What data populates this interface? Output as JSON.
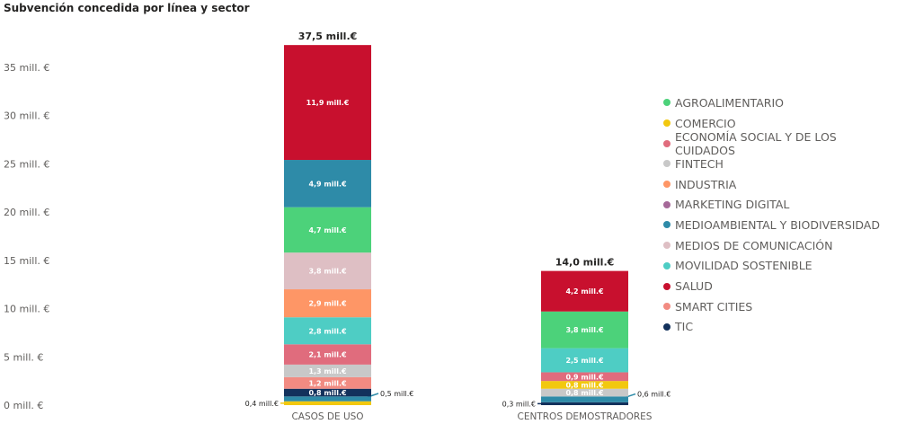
{
  "title": "Subvención concedida por línea y sector",
  "chart_data": {
    "type": "bar",
    "stacked": true,
    "title": "Subvención concedida por línea y sector",
    "categories": [
      "CASOS DE USO",
      "CENTROS DEMOSTRADORES"
    ],
    "totals": [
      "37,5 mill.€",
      "14,0 mill.€"
    ],
    "ylim": [
      0,
      37.5
    ],
    "yticks": [
      {
        "value": 0,
        "label": "0 mill. €"
      },
      {
        "value": 5,
        "label": "5 mill. €"
      },
      {
        "value": 10,
        "label": "10 mill. €"
      },
      {
        "value": 15,
        "label": "15 mill. €"
      },
      {
        "value": 20,
        "label": "20 mill. €"
      },
      {
        "value": 25,
        "label": "25 mill. €"
      },
      {
        "value": 30,
        "label": "30 mill. €"
      },
      {
        "value": 35,
        "label": "35 mill. €"
      }
    ],
    "legend_position": "right",
    "series": [
      {
        "name": "COMERCIO",
        "color": "#F2C80F",
        "values": [
          0.4,
          0.8
        ],
        "labels": [
          "0,4 mill.€",
          "0,8 mill.€"
        ]
      },
      {
        "name": "TIC",
        "color": "#13315C",
        "values": [
          0.8,
          0.3
        ],
        "labels": [
          "0,8 mill.€",
          "0,3 mill.€"
        ]
      },
      {
        "name": "MEDIOAMBIENTAL Y BIODIVERSIDAD",
        "color": "#2E8BA8",
        "values": [
          0.5,
          0.6
        ],
        "labels": [
          "0,5 mill.€",
          "0,6 mill.€"
        ]
      },
      {
        "name": "SMART CITIES",
        "color": "#F28B82",
        "values": [
          1.2,
          0
        ],
        "labels": [
          "1,2 mill.€",
          ""
        ]
      },
      {
        "name": "FINTECH",
        "color": "#C8C8C8",
        "values": [
          1.3,
          0.8
        ],
        "labels": [
          "1,3 mill.€",
          "0,8 mill.€"
        ]
      },
      {
        "name": "ECONOMÍA SOCIAL Y DE LOS CUIDADOS",
        "color": "#E06C7D",
        "values": [
          2.1,
          0.9
        ],
        "labels": [
          "2,1 mill.€",
          "0,9 mill.€"
        ]
      },
      {
        "name": "MOVILIDAD SOSTENIBLE",
        "color": "#4ECDC4",
        "values": [
          2.8,
          2.5
        ],
        "labels": [
          "2,8 mill.€",
          "2,5 mill.€"
        ]
      },
      {
        "name": "INDUSTRIA",
        "color": "#FE9666",
        "values": [
          2.9,
          0
        ],
        "labels": [
          "2,9 mill.€",
          ""
        ]
      },
      {
        "name": "MEDIOS DE COMUNICACIÓN",
        "color": "#DEBFC4",
        "values": [
          3.8,
          0
        ],
        "labels": [
          "3,8 mill.€",
          ""
        ]
      },
      {
        "name": "AGROALIMENTARIO",
        "color": "#4CD27A",
        "values": [
          4.7,
          3.8
        ],
        "labels": [
          "4,7 mill.€",
          "3,8 mill.€"
        ]
      },
      {
        "name": "MARKETING DIGITAL",
        "color": "#A66999",
        "values": [
          0,
          0
        ],
        "labels": [
          "",
          ""
        ]
      },
      {
        "name": "SALUD",
        "color": "#C8102E",
        "values": [
          11.9,
          4.2
        ],
        "labels": [
          "11,9 mill.€",
          "4,2 mill.€"
        ]
      }
    ],
    "dark_segment": {
      "name": "MEDIOAMBIENTAL Y BIODIVERSIDAD",
      "color": "#2E8BA8",
      "values": [
        4.9,
        0
      ],
      "labels": [
        "4,9 mill.€",
        ""
      ]
    },
    "legend": [
      {
        "name": "AGROALIMENTARIO",
        "color": "#4CD27A"
      },
      {
        "name": "COMERCIO",
        "color": "#F2C80F"
      },
      {
        "name": "ECONOMÍA SOCIAL Y DE LOS CUIDADOS",
        "color": "#E06C7D"
      },
      {
        "name": "FINTECH",
        "color": "#C8C8C8"
      },
      {
        "name": "INDUSTRIA",
        "color": "#FE9666"
      },
      {
        "name": "MARKETING DIGITAL",
        "color": "#A66999"
      },
      {
        "name": "MEDIOAMBIENTAL Y BIODIVERSIDAD",
        "color": "#2E8BA8"
      },
      {
        "name": "MEDIOS DE COMUNICACIÓN",
        "color": "#DEBFC4"
      },
      {
        "name": "MOVILIDAD SOSTENIBLE",
        "color": "#4ECDC4"
      },
      {
        "name": "SALUD",
        "color": "#C8102E"
      },
      {
        "name": "SMART CITIES",
        "color": "#F28B82"
      },
      {
        "name": "TIC",
        "color": "#13315C"
      }
    ],
    "stacks": [
      [
        {
          "series": "COMERCIO",
          "value": 0.4,
          "label": "0,4 mill.€",
          "outside": "left"
        },
        {
          "series": "MEDIOAMBIENTAL Y BIODIVERSIDAD",
          "value": 0.5,
          "label": "0,5 mill.€",
          "outside": "right"
        },
        {
          "series": "TIC",
          "value": 0.8,
          "label": "0,8 mill.€"
        },
        {
          "series": "SMART CITIES",
          "value": 1.2,
          "label": "1,2 mill.€"
        },
        {
          "series": "FINTECH",
          "value": 1.3,
          "label": "1,3 mill.€"
        },
        {
          "series": "ECONOMÍA SOCIAL Y DE LOS CUIDADOS",
          "value": 2.1,
          "label": "2,1 mill.€"
        },
        {
          "series": "MOVILIDAD SOSTENIBLE",
          "value": 2.8,
          "label": "2,8 mill.€"
        },
        {
          "series": "INDUSTRIA",
          "value": 2.9,
          "label": "2,9 mill.€"
        },
        {
          "series": "MEDIOS DE COMUNICACIÓN",
          "value": 3.8,
          "label": "3,8 mill.€"
        },
        {
          "series": "AGROALIMENTARIO",
          "value": 4.7,
          "label": "4,7 mill.€"
        },
        {
          "series": "MEDIOAMBIENTAL Y BIODIVERSIDAD",
          "value": 4.9,
          "label": "4,9 mill.€"
        },
        {
          "series": "SALUD",
          "value": 11.9,
          "label": "11,9 mill.€"
        }
      ],
      [
        {
          "series": "TIC",
          "value": 0.3,
          "label": "0,3 mill.€",
          "outside": "left"
        },
        {
          "series": "MEDIOAMBIENTAL Y BIODIVERSIDAD",
          "value": 0.6,
          "label": "0,6 mill.€",
          "outside": "right"
        },
        {
          "series": "FINTECH",
          "value": 0.8,
          "label": "0,8 mill.€"
        },
        {
          "series": "COMERCIO",
          "value": 0.8,
          "label": "0,8 mill.€"
        },
        {
          "series": "ECONOMÍA SOCIAL Y DE LOS CUIDADOS",
          "value": 0.9,
          "label": "0,9 mill.€"
        },
        {
          "series": "MOVILIDAD SOSTENIBLE",
          "value": 2.5,
          "label": "2,5 mill.€"
        },
        {
          "series": "AGROALIMENTARIO",
          "value": 3.8,
          "label": "3,8 mill.€"
        },
        {
          "series": "SALUD",
          "value": 4.2,
          "label": "4,2 mill.€"
        }
      ]
    ]
  }
}
